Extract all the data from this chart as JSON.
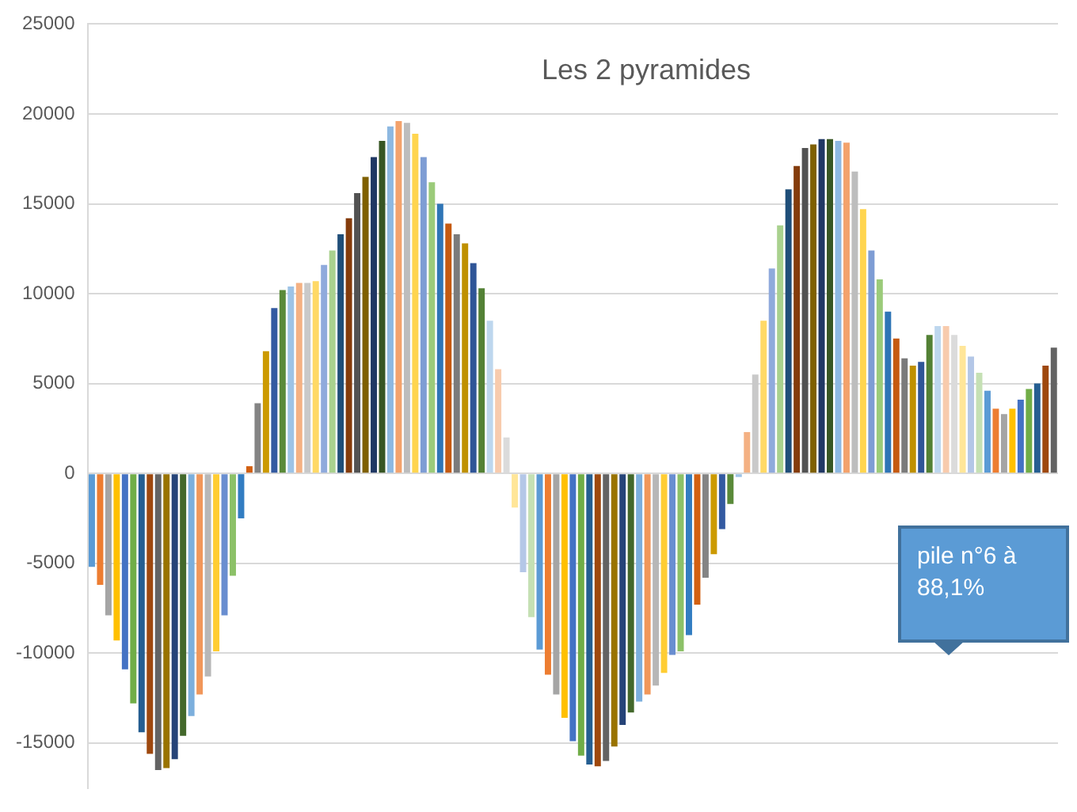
{
  "chart_data": {
    "type": "bar",
    "title": "Les 2 pyramides",
    "categories": [
      null,
      null,
      null,
      null,
      null,
      null,
      null,
      null,
      null,
      null,
      null,
      null,
      null,
      null,
      null,
      null,
      null,
      null,
      null,
      null,
      null,
      null,
      null,
      null,
      null,
      null,
      null,
      null,
      null,
      null,
      null,
      null,
      null,
      null,
      null,
      null,
      null,
      null,
      null,
      null,
      null,
      null,
      null,
      null,
      null,
      null,
      null,
      null,
      null,
      null,
      null,
      null,
      null,
      null,
      null,
      null,
      null,
      null,
      null,
      null,
      null,
      null,
      null,
      null,
      null,
      null,
      null,
      null,
      null,
      null,
      null,
      null,
      null,
      null,
      null,
      null,
      null,
      null,
      null,
      null,
      null,
      null,
      null,
      null,
      null,
      null,
      null,
      null,
      null,
      null,
      null,
      null,
      null,
      null,
      null,
      null,
      null,
      null,
      null,
      null,
      null,
      null,
      null,
      null,
      null,
      null,
      null,
      null,
      null,
      null,
      null,
      null,
      null,
      null,
      null,
      null,
      null
    ],
    "values": [
      -5200,
      -6200,
      -7900,
      -9300,
      -10900,
      -12800,
      -14400,
      -15600,
      -16500,
      -16400,
      -15900,
      -14600,
      -13500,
      -12300,
      -11300,
      -9900,
      -7900,
      -5700,
      -2500,
      400,
      3900,
      6800,
      9200,
      10200,
      10400,
      10600,
      10600,
      10700,
      11600,
      12400,
      13300,
      14200,
      15600,
      16500,
      17600,
      18500,
      19300,
      19600,
      19500,
      18900,
      17600,
      16200,
      15000,
      13900,
      13300,
      12800,
      11700,
      10300,
      8500,
      5800,
      2000,
      -1900,
      -5500,
      -8000,
      -9800,
      -11200,
      -12300,
      -13600,
      -14900,
      -15700,
      -16200,
      -16300,
      -16000,
      -15200,
      -14000,
      -13300,
      -12700,
      -12300,
      -11800,
      -11100,
      -10100,
      -9900,
      -9000,
      -7300,
      -5800,
      -4500,
      -3100,
      -1700,
      -200,
      2300,
      5500,
      8500,
      11400,
      13800,
      15800,
      17100,
      18100,
      18300,
      18600,
      18600,
      18500,
      18400,
      16800,
      14700,
      12400,
      10800,
      9000,
      7500,
      6400,
      6000,
      6200,
      7700,
      8200,
      8200,
      7700,
      7100,
      6500,
      5600,
      4600,
      3600,
      3300,
      3600,
      4100,
      4700,
      5000,
      6000,
      7000
    ],
    "colors": [
      "#5b9bd5",
      "#ed7d31",
      "#a5a5a5",
      "#ffc000",
      "#4472c4",
      "#70ad47",
      "#255e91",
      "#9e480e",
      "#636363",
      "#997300",
      "#264478",
      "#43682b",
      "#7cafdd",
      "#f1975a",
      "#b7b7b7",
      "#ffcd33",
      "#698ed0",
      "#8cc168",
      "#327dc2",
      "#d26012",
      "#848484",
      "#cc9a00",
      "#335aa1",
      "#5a8a39",
      "#9dc3e6",
      "#f4b183",
      "#c9c9c9",
      "#ffd966",
      "#8faadc",
      "#a9d18e",
      "#1f4e79",
      "#843c0c",
      "#525252",
      "#7f6000",
      "#203864",
      "#375623",
      "#8db8e1",
      "#f3a26c",
      "#bdbdbd",
      "#ffd54f",
      "#7e9dd4",
      "#9bcb7a",
      "#2e75b6",
      "#c55a11",
      "#7b7b7b",
      "#bf9000",
      "#2f5597",
      "#538135",
      "#bdd7ee",
      "#f8cbad",
      "#dbdbdb",
      "#ffe699",
      "#b4c7e7",
      "#c5e0b4",
      "#5b9bd5",
      "#ed7d31",
      "#a5a5a5",
      "#ffc000",
      "#4472c4",
      "#70ad47",
      "#255e91",
      "#9e480e",
      "#636363",
      "#997300",
      "#264478",
      "#43682b",
      "#7cafdd",
      "#f1975a",
      "#b7b7b7",
      "#ffcd33",
      "#698ed0",
      "#8cc168",
      "#327dc2",
      "#d26012",
      "#848484",
      "#cc9a00",
      "#335aa1",
      "#5a8a39",
      "#9dc3e6",
      "#f4b183",
      "#c9c9c9",
      "#ffd966",
      "#8faadc",
      "#a9d18e",
      "#1f4e79",
      "#843c0c",
      "#525252",
      "#7f6000",
      "#203864",
      "#375623",
      "#8db8e1",
      "#f3a26c",
      "#bdbdbd",
      "#ffd54f",
      "#7e9dd4",
      "#9bcb7a",
      "#2e75b6",
      "#c55a11",
      "#7b7b7b",
      "#bf9000",
      "#2f5597",
      "#538135",
      "#bdd7ee",
      "#f8cbad",
      "#dbdbdb",
      "#ffe699",
      "#b4c7e7",
      "#c5e0b4",
      "#5b9bd5",
      "#ed7d31",
      "#a5a5a5",
      "#ffc000",
      "#4472c4",
      "#70ad47",
      "#255e91",
      "#9e480e",
      "#636363"
    ],
    "ylim": [
      -17500,
      25000
    ],
    "yticks": [
      -15000,
      -10000,
      -5000,
      0,
      5000,
      10000,
      15000,
      20000,
      25000
    ],
    "grid": "y",
    "tick_labels": "y",
    "annotations": [
      "pile n°6 à 88,1%"
    ]
  }
}
